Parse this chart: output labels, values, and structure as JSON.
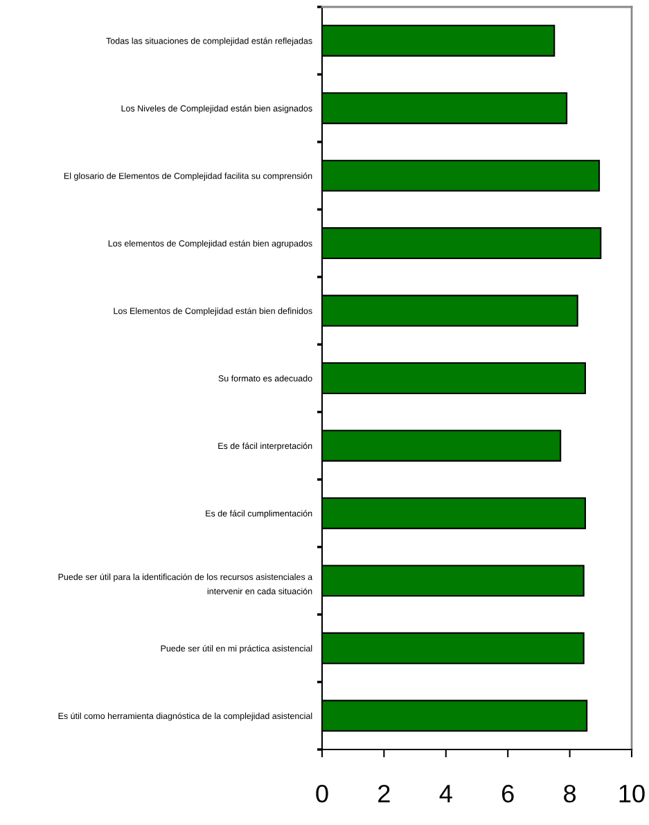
{
  "chart_data": {
    "type": "bar",
    "orientation": "horizontal",
    "categories": [
      "Todas las situaciones de complejidad están reflejadas",
      "Los Niveles de Complejidad están bien asignados",
      "El glosario de Elementos de Complejidad facilita su comprensión",
      "Los elementos de Complejidad están bien agrupados",
      "Los Elementos de Complejidad están bien definidos",
      "Su formato es adecuado",
      "Es de fácil interpretación",
      "Es de fácil cumplimentación",
      "Puede ser útil para la identificación de los recursos asistenciales a\nintervenir en cada situación",
      "Puede ser útil en mi práctica asistencial",
      "Es útil como herramienta diagnóstica de la complejidad asistencial"
    ],
    "values": [
      7.5,
      7.9,
      8.95,
      9.0,
      8.25,
      8.5,
      7.7,
      8.5,
      8.45,
      8.45,
      8.55
    ],
    "color": "#007a00",
    "xlim": [
      0,
      10
    ],
    "xticks": [
      0,
      2,
      4,
      6,
      8,
      10
    ],
    "grid": false,
    "legend": false
  }
}
